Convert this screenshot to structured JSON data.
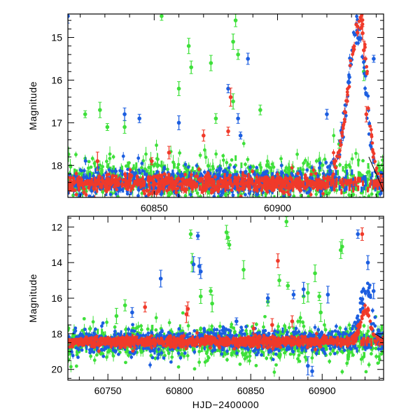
{
  "chart_data": [
    {
      "type": "scatter",
      "title": "",
      "xlabel": "",
      "ylabel": "Magnitude",
      "xlim": [
        60815,
        60943
      ],
      "ylim": [
        18.75,
        14.45
      ],
      "y_inverted": true,
      "grid": false,
      "x_tick_labels": [
        "60850",
        "60900"
      ],
      "x_ticks": [
        60850,
        60900
      ],
      "y_tick_labels": [
        "15",
        "16",
        "17",
        "18"
      ],
      "y_ticks": [
        15,
        16,
        17,
        18
      ],
      "series_colors": {
        "red": "#f03a2a",
        "green": "#3ee03a",
        "blue": "#1c5ee0"
      },
      "series": [
        {
          "color_key": "red",
          "baseline": 18.42,
          "scatter": 0.12,
          "peak": {
            "x": 60934,
            "mag": 14.6,
            "rise": 8,
            "decay": 4
          },
          "highlights": [
            [
              60934,
              14.6
            ],
            [
              60934.5,
              14.9
            ],
            [
              60935,
              15.3
            ],
            [
              60936,
              16.8
            ],
            [
              60881,
              16.4
            ],
            [
              60880,
              17.2
            ],
            [
              60856,
              17.7
            ],
            [
              60849,
              17.9
            ],
            [
              60827,
              17.9
            ],
            [
              60870,
              17.3
            ]
          ]
        },
        {
          "color_key": "green",
          "baseline": 18.35,
          "scatter": 0.3,
          "highlights": [
            [
              60853,
              14.5
            ],
            [
              60864,
              15.2
            ],
            [
              60865,
              15.7
            ],
            [
              60873,
              15.6
            ],
            [
              60883,
              14.6
            ],
            [
              60882,
              15.1
            ],
            [
              60884,
              15.4
            ],
            [
              60882,
              16.5
            ],
            [
              60828,
              16.7
            ],
            [
              60822,
              16.8
            ],
            [
              60860,
              16.2
            ],
            [
              60875,
              16.9
            ],
            [
              60893,
              16.7
            ],
            [
              60831,
              17.1
            ],
            [
              60925,
              17.5
            ],
            [
              60935,
              15.8
            ],
            [
              60838,
              17.1
            ]
          ]
        },
        {
          "color_key": "blue",
          "baseline": 18.38,
          "scatter": 0.18,
          "peak": {
            "x": 60933,
            "mag": 14.8,
            "rise": 7,
            "decay": 4.5
          },
          "highlights": [
            [
              60815,
              14.5
            ],
            [
              60884,
              16.9
            ],
            [
              60885,
              17.3
            ],
            [
              60888,
              15.5
            ],
            [
              60939,
              15.5
            ],
            [
              60838,
              16.8
            ],
            [
              60844,
              16.9
            ],
            [
              60860,
              17.0
            ],
            [
              60880,
              16.2
            ],
            [
              60920,
              16.8
            ],
            [
              60926,
              17.2
            ]
          ]
        }
      ],
      "model_line": {
        "x": [
          60937,
          60943
        ],
        "mag": [
          17.8,
          18.6
        ]
      }
    },
    {
      "type": "scatter",
      "title": "",
      "xlabel": "HJD−2400000",
      "ylabel": "Magnitude",
      "xlim": [
        60722,
        60943
      ],
      "ylim": [
        20.6,
        11.4
      ],
      "y_inverted": true,
      "grid": false,
      "x_tick_labels": [
        "60750",
        "60800",
        "60850",
        "60900"
      ],
      "x_ticks": [
        60750,
        60800,
        60850,
        60900
      ],
      "y_tick_labels": [
        "12",
        "14",
        "16",
        "18",
        "20"
      ],
      "y_ticks": [
        12,
        14,
        16,
        18,
        20
      ],
      "series_colors": {
        "red": "#f03a2a",
        "green": "#3ee03a",
        "blue": "#1c5ee0"
      },
      "series": [
        {
          "color_key": "red",
          "baseline": 18.45,
          "scatter": 0.15,
          "peak": {
            "x": 60931,
            "mag": 16.6,
            "rise": 6,
            "decay": 4
          },
          "highlights": [
            [
              60928,
              12.4
            ],
            [
              60869,
              13.9
            ],
            [
              60776,
              16.5
            ],
            [
              60806,
              16.6
            ],
            [
              60805,
              16.9
            ],
            [
              60852,
              17.7
            ],
            [
              60865,
              17.5
            ],
            [
              60879,
              17.3
            ]
          ]
        },
        {
          "color_key": "green",
          "baseline": 18.5,
          "scatter": 0.5,
          "highlights": [
            [
              60875,
              11.7
            ],
            [
              60833,
              12.3
            ],
            [
              60834,
              12.6
            ],
            [
              60835,
              13.0
            ],
            [
              60808,
              12.4
            ],
            [
              60913,
              13.3
            ],
            [
              60914,
              13.1
            ],
            [
              60809,
              14.0
            ],
            [
              60845,
              14.4
            ],
            [
              60870,
              15.0
            ],
            [
              60876,
              15.3
            ],
            [
              60887,
              15.9
            ],
            [
              60890,
              15.7
            ],
            [
              60815,
              15.9
            ],
            [
              60822,
              15.6
            ],
            [
              60762,
              16.4
            ],
            [
              60895,
              14.6
            ],
            [
              60898,
              15.9
            ],
            [
              60756,
              17.0
            ],
            [
              60823,
              16.3
            ],
            [
              60862,
              16.2
            ],
            [
              60899,
              16.8
            ]
          ]
        },
        {
          "color_key": "blue",
          "baseline": 18.4,
          "scatter": 0.35,
          "peak": {
            "x": 60931,
            "mag": 15.3,
            "rise": 6,
            "decay": 5
          },
          "highlights": [
            [
              60925,
              12.4
            ],
            [
              60813,
              12.5
            ],
            [
              60810,
              14.1
            ],
            [
              60814,
              14.2
            ],
            [
              60815,
              14.5
            ],
            [
              60932,
              14.0
            ],
            [
              60787,
              14.9
            ],
            [
              60862,
              16.0
            ],
            [
              60880,
              15.8
            ],
            [
              60887,
              15.5
            ],
            [
              60904,
              15.8
            ],
            [
              60936,
              15.6
            ],
            [
              60767,
              16.8
            ],
            [
              60890,
              19.8
            ],
            [
              60893,
              20.1
            ],
            [
              60840,
              17.3
            ]
          ]
        }
      ],
      "model_line": {
        "x": [
          60937,
          60943
        ],
        "mag": [
          18.0,
          18.3
        ]
      }
    }
  ]
}
